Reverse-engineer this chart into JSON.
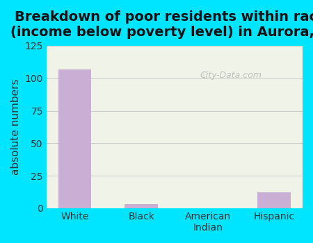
{
  "title": "Breakdown of poor residents within races\n(income below poverty level) in Aurora, WI",
  "categories": [
    "White",
    "Black",
    "American\nIndian",
    "Hispanic"
  ],
  "values": [
    107,
    3,
    0,
    12
  ],
  "bar_color": "#c9afd4",
  "ylabel": "absolute numbers",
  "ylim": [
    0,
    125
  ],
  "yticks": [
    0,
    25,
    50,
    75,
    100,
    125
  ],
  "title_fontsize": 14,
  "ylabel_fontsize": 11,
  "tick_fontsize": 10,
  "bg_outer": "#00e5ff",
  "bg_plot_top": "#f0f4e8",
  "bg_plot_bottom": "#e8f5e0",
  "watermark": "City-Data.com",
  "bar_width": 0.5,
  "grid_color": "#cccccc"
}
